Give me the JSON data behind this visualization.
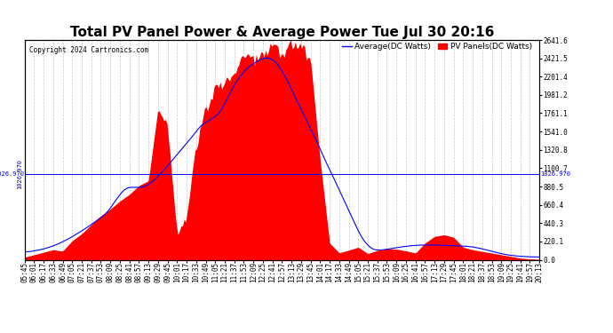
{
  "title": "Total PV Panel Power & Average Power Tue Jul 30 20:16",
  "copyright": "Copyright 2024 Cartronics.com",
  "legend_avg": "Average(DC Watts)",
  "legend_pv": "PV Panels(DC Watts)",
  "avg_color": "blue",
  "pv_color": "red",
  "background_color": "#ffffff",
  "grid_color": "#c8c8c8",
  "ymin": 0.0,
  "ymax": 2641.6,
  "yticks": [
    0.0,
    220.1,
    440.3,
    660.4,
    880.5,
    1100.7,
    1320.8,
    1541.0,
    1761.1,
    1981.2,
    2201.4,
    2421.5,
    2641.6
  ],
  "hline_value": 1026.97,
  "hline_label": "1026.970",
  "title_fontsize": 11,
  "tick_fontsize": 5.5,
  "copyright_fontsize": 5.5,
  "legend_fontsize": 6.5,
  "time_labels": [
    "05:45",
    "06:01",
    "06:17",
    "06:33",
    "06:49",
    "07:05",
    "07:21",
    "07:37",
    "07:53",
    "08:09",
    "08:25",
    "08:41",
    "08:57",
    "09:13",
    "09:29",
    "09:45",
    "10:01",
    "10:17",
    "10:33",
    "10:49",
    "11:05",
    "11:21",
    "11:37",
    "11:53",
    "12:09",
    "12:25",
    "12:41",
    "12:57",
    "13:13",
    "13:29",
    "13:45",
    "14:01",
    "14:17",
    "14:33",
    "14:49",
    "15:05",
    "15:21",
    "15:37",
    "15:53",
    "16:09",
    "16:25",
    "16:41",
    "16:57",
    "17:13",
    "17:29",
    "17:45",
    "18:01",
    "18:21",
    "18:37",
    "18:53",
    "19:09",
    "19:25",
    "19:41",
    "19:57",
    "20:13"
  ]
}
